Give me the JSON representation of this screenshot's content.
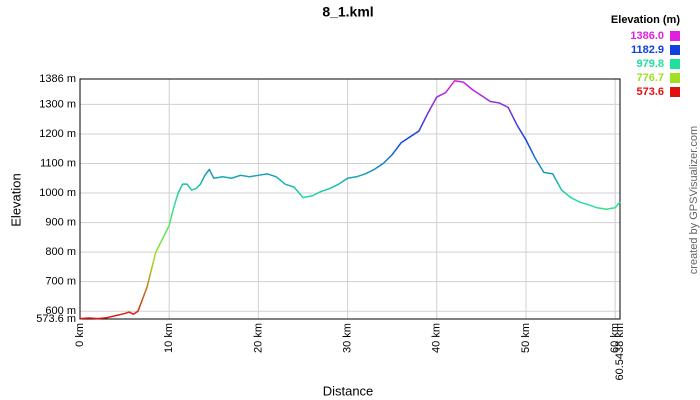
{
  "chart_data": {
    "type": "line",
    "title": "8_1.kml",
    "x_label": "Distance",
    "y_label": "Elevation",
    "credit": "created by GPSVisualizer.com",
    "x": [
      0,
      1,
      2,
      3,
      4,
      5,
      5.5,
      6,
      6.5,
      7,
      7.5,
      8,
      8.5,
      9,
      9.5,
      10,
      10.5,
      11,
      11.5,
      12,
      12.5,
      13,
      13.5,
      14,
      14.5,
      15,
      16,
      17,
      18,
      19,
      20,
      21,
      22,
      23,
      24,
      25,
      26,
      27,
      28,
      29,
      30,
      31,
      32,
      33,
      34,
      35,
      36,
      37,
      38,
      39,
      40,
      41,
      42,
      43,
      44,
      45,
      46,
      47,
      48,
      49,
      50,
      51,
      52,
      53,
      54,
      55,
      56,
      57,
      58,
      59,
      60,
      60.5438
    ],
    "values": [
      575,
      577,
      575,
      578,
      585,
      592,
      597,
      590,
      600,
      640,
      680,
      740,
      800,
      830,
      860,
      890,
      950,
      1000,
      1030,
      1030,
      1010,
      1015,
      1030,
      1060,
      1080,
      1050,
      1055,
      1050,
      1060,
      1055,
      1060,
      1065,
      1055,
      1030,
      1020,
      985,
      990,
      1005,
      1015,
      1030,
      1050,
      1055,
      1065,
      1080,
      1100,
      1130,
      1170,
      1190,
      1210,
      1270,
      1325,
      1340,
      1380,
      1375,
      1350,
      1330,
      1310,
      1305,
      1290,
      1230,
      1180,
      1120,
      1070,
      1065,
      1010,
      985,
      970,
      960,
      950,
      945,
      950,
      970
    ],
    "xlim": [
      0,
      60.5438
    ],
    "ylim": [
      573.6,
      1386
    ],
    "xticks": [
      {
        "value": 0,
        "label": "0 km"
      },
      {
        "value": 10,
        "label": "10 km"
      },
      {
        "value": 20,
        "label": "20 km"
      },
      {
        "value": 30,
        "label": "30 km"
      },
      {
        "value": 40,
        "label": "40 km"
      },
      {
        "value": 50,
        "label": "50 km"
      },
      {
        "value": 60,
        "label": "60 km"
      },
      {
        "value": 60.5438,
        "label": "60.5438 km"
      }
    ],
    "yticks": [
      {
        "value": 573.6,
        "label": "573.6 m"
      },
      {
        "value": 600,
        "label": "600 m"
      },
      {
        "value": 700,
        "label": "700 m"
      },
      {
        "value": 800,
        "label": "800 m"
      },
      {
        "value": 900,
        "label": "900 m"
      },
      {
        "value": 1000,
        "label": "1000 m"
      },
      {
        "value": 1100,
        "label": "1100 m"
      },
      {
        "value": 1200,
        "label": "1200 m"
      },
      {
        "value": 1300,
        "label": "1300 m"
      },
      {
        "value": 1386,
        "label": "1386 m"
      }
    ],
    "grid": true,
    "legend": {
      "title": "Elevation (m)",
      "items": [
        {
          "value": 1386,
          "label": "1386.0",
          "color": "#e020e0"
        },
        {
          "value": 1182.9,
          "label": "1182.9",
          "color": "#1040e0"
        },
        {
          "value": 979.8,
          "label": "979.8",
          "color": "#20e0a0"
        },
        {
          "value": 776.7,
          "label": "776.7",
          "color": "#a0e020"
        },
        {
          "value": 573.6,
          "label": "573.6",
          "color": "#e01010"
        }
      ]
    }
  }
}
